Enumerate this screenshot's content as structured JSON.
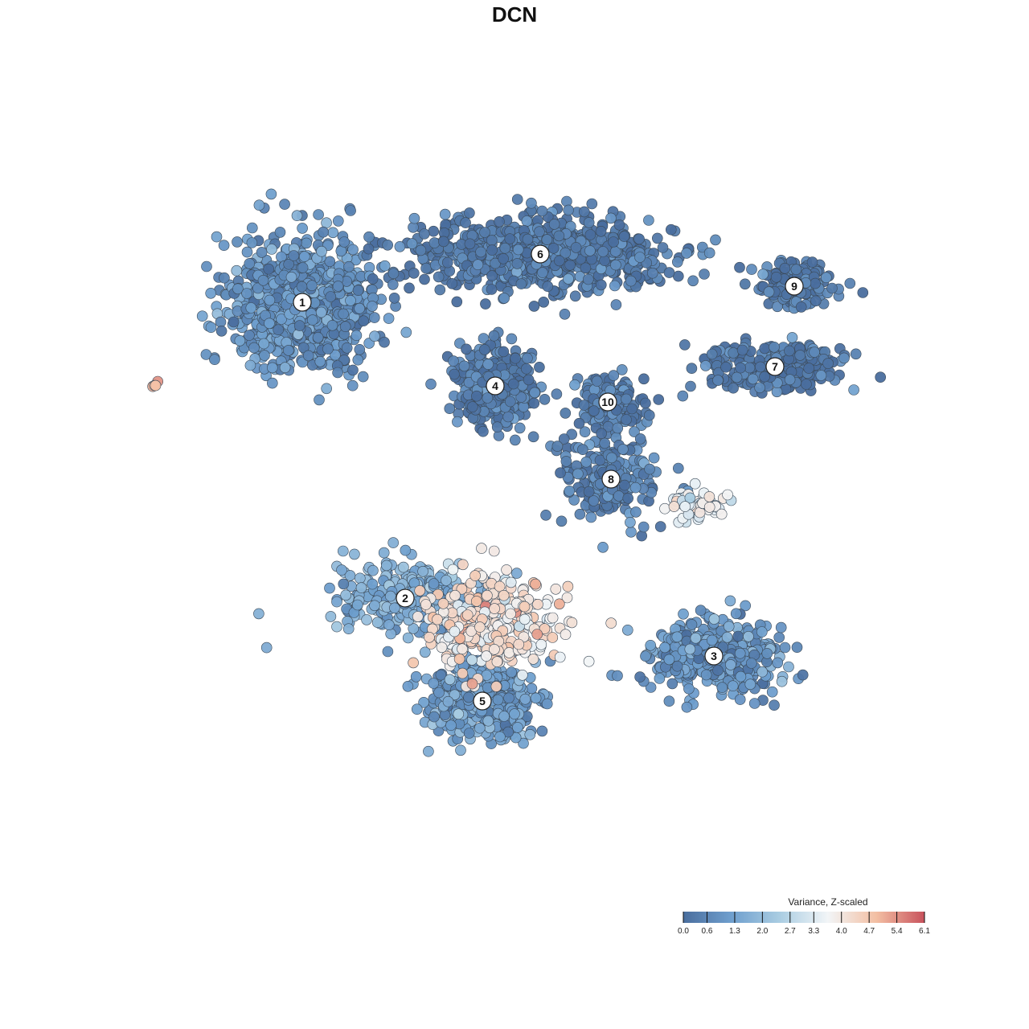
{
  "chart_data": {
    "type": "scatter",
    "title": "DCN",
    "xlabel": "",
    "ylabel": "",
    "grid": false,
    "axes_visible": false,
    "color_scale": {
      "title": "Variance, Z-scaled",
      "min": 0.0,
      "max": 6.1,
      "ticks": [
        0.0,
        0.6,
        1.3,
        2.0,
        2.7,
        3.3,
        4.0,
        4.7,
        5.4,
        6.1
      ],
      "tick_labels": [
        "0.0",
        "0.6",
        "1.3",
        "2.0",
        "2.7",
        "3.3",
        "4.0",
        "4.7",
        "5.4",
        "6.1"
      ],
      "colors": [
        "#4a6e9e",
        "#6f9fce",
        "#aacde2",
        "#f2f5f7",
        "#f3bfa3",
        "#c8525c"
      ],
      "placement": "bottom-right"
    },
    "clusters": [
      {
        "label": "1",
        "x": -6.6,
        "y": 6.6,
        "spread_x": 2.0,
        "spread_y": 1.9,
        "value": 0.9,
        "n": 850
      },
      {
        "label": "2",
        "x": -3.4,
        "y": -2.6,
        "spread_x": 2.0,
        "spread_y": 1.0,
        "value": 1.6,
        "n": 320
      },
      {
        "label": "3",
        "x": 6.2,
        "y": -4.4,
        "spread_x": 1.8,
        "spread_y": 1.1,
        "value": 1.0,
        "n": 420
      },
      {
        "label": "4",
        "x": -0.6,
        "y": 4.0,
        "spread_x": 1.1,
        "spread_y": 1.1,
        "value": 0.35,
        "n": 380
      },
      {
        "label": "5",
        "x": -1.0,
        "y": -5.8,
        "spread_x": 1.5,
        "spread_y": 1.0,
        "value": 1.2,
        "n": 460
      },
      {
        "label": "6",
        "x": 0.8,
        "y": 8.1,
        "spread_x": 3.6,
        "spread_y": 1.0,
        "value": 0.3,
        "n": 750
      },
      {
        "label": "7",
        "x": 8.1,
        "y": 4.6,
        "spread_x": 2.0,
        "spread_y": 0.7,
        "value": 0.2,
        "n": 260
      },
      {
        "label": "8",
        "x": 3.0,
        "y": 1.1,
        "spread_x": 1.4,
        "spread_y": 1.3,
        "value": 0.5,
        "n": 200
      },
      {
        "label": "9",
        "x": 8.7,
        "y": 7.1,
        "spread_x": 1.1,
        "spread_y": 0.6,
        "value": 0.25,
        "n": 170
      },
      {
        "label": "10",
        "x": 2.9,
        "y": 3.5,
        "spread_x": 0.9,
        "spread_y": 0.8,
        "value": 0.3,
        "n": 160
      }
    ],
    "high_expression_regions": [
      {
        "x": -0.8,
        "y": -3.4,
        "spread_x": 1.9,
        "spread_y": 1.4,
        "value": 4.1,
        "n": 330
      },
      {
        "x": 5.7,
        "y": 0.3,
        "spread_x": 0.8,
        "spread_y": 0.4,
        "value": 3.5,
        "n": 60
      },
      {
        "x": -11.2,
        "y": 4.0,
        "spread_x": 0.2,
        "spread_y": 0.2,
        "value": 5.0,
        "n": 4
      }
    ]
  }
}
